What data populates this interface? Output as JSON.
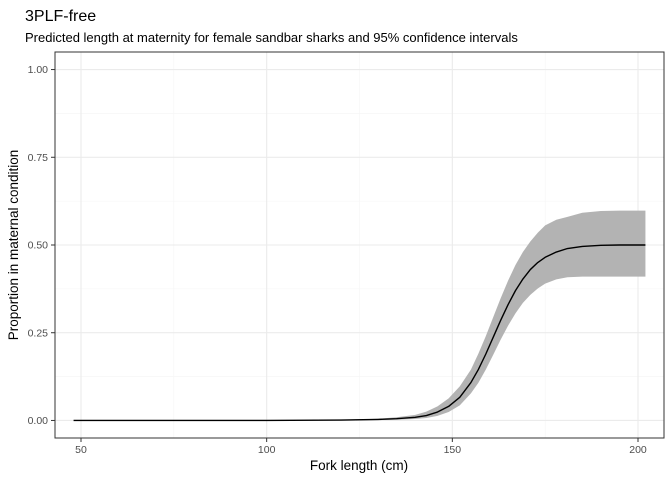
{
  "chart_data": {
    "type": "line",
    "title": "3PLF-free",
    "subtitle": "Predicted length at maternity for female sandbar sharks and 95% confidence intervals",
    "xlabel": "Fork length (cm)",
    "ylabel": "Proportion in maternal condition",
    "xlim": [
      43,
      207
    ],
    "ylim": [
      -0.05,
      1.05
    ],
    "x_ticks": [
      50,
      100,
      150,
      200
    ],
    "x_tick_labels": [
      "50",
      "100",
      "150",
      "200"
    ],
    "y_ticks": [
      0,
      0.25,
      0.5,
      0.75,
      1
    ],
    "y_tick_labels": [
      "0.00",
      "0.25",
      "0.50",
      "0.75",
      "1.00"
    ],
    "grid": true,
    "legend": "none",
    "colors": {
      "panel_border": "#333333",
      "grid_major": "#ebebeb",
      "grid_minor": "#f5f5f5",
      "ribbon": "#b3b3b3",
      "line": "#000000"
    },
    "series": [
      {
        "type": "line",
        "x": [
          48,
          100,
          120,
          130,
          135,
          140,
          143,
          146,
          149,
          152,
          155,
          157,
          159,
          161,
          163,
          165,
          167,
          169,
          171,
          173,
          175,
          178,
          181,
          185,
          190,
          195,
          202
        ],
        "y": [
          0,
          0,
          0.001,
          0.003,
          0.005,
          0.009,
          0.014,
          0.024,
          0.04,
          0.066,
          0.108,
          0.145,
          0.189,
          0.237,
          0.285,
          0.33,
          0.37,
          0.403,
          0.43,
          0.45,
          0.465,
          0.48,
          0.49,
          0.496,
          0.499,
          0.5,
          0.5
        ]
      },
      {
        "type": "ribbon",
        "x": [
          48,
          100,
          120,
          130,
          135,
          140,
          143,
          146,
          149,
          152,
          155,
          157,
          159,
          161,
          163,
          165,
          167,
          169,
          171,
          173,
          175,
          178,
          181,
          185,
          190,
          195,
          202
        ],
        "ymin": [
          0,
          0,
          0,
          0.001,
          0.002,
          0.004,
          0.007,
          0.013,
          0.024,
          0.043,
          0.077,
          0.107,
          0.145,
          0.187,
          0.23,
          0.27,
          0.305,
          0.335,
          0.358,
          0.376,
          0.39,
          0.402,
          0.408,
          0.41,
          0.41,
          0.41,
          0.41
        ],
        "ymax": [
          0,
          0,
          0.002,
          0.005,
          0.009,
          0.016,
          0.025,
          0.04,
          0.063,
          0.097,
          0.145,
          0.19,
          0.24,
          0.294,
          0.348,
          0.398,
          0.443,
          0.48,
          0.51,
          0.535,
          0.556,
          0.572,
          0.58,
          0.592,
          0.597,
          0.598,
          0.598
        ]
      }
    ]
  }
}
